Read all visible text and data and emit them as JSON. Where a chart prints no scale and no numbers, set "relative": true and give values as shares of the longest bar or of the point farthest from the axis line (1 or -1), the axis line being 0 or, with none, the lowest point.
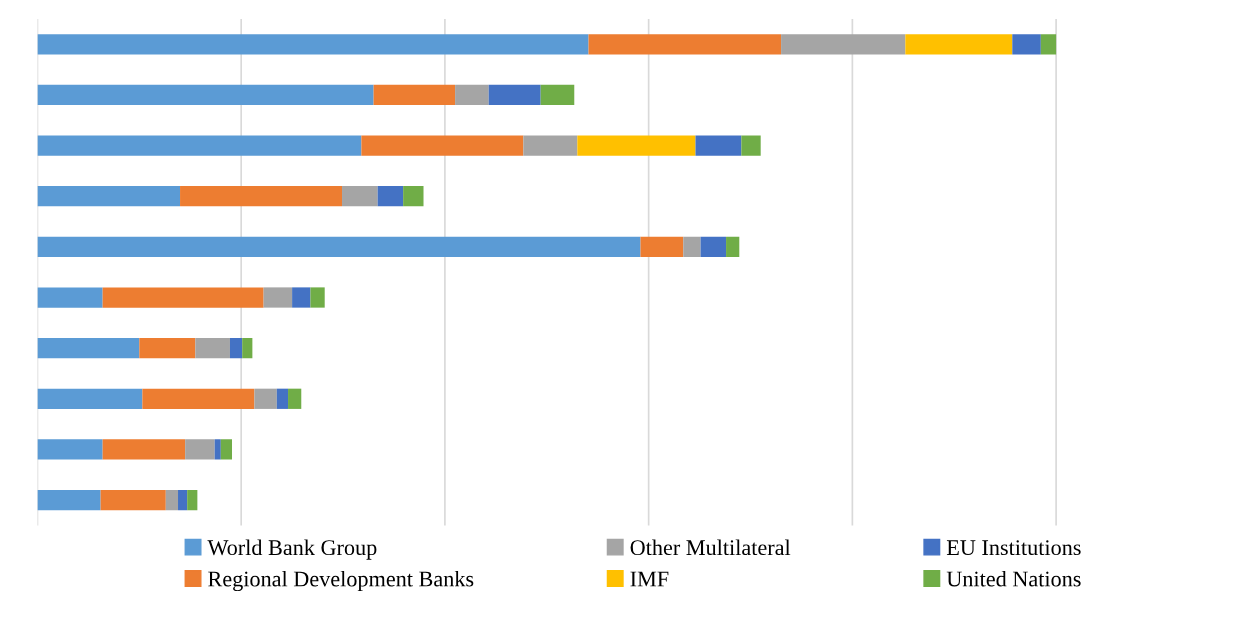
{
  "chart_data": {
    "type": "bar",
    "orientation": "horizontal",
    "stacked": true,
    "relative": true,
    "grid": "x",
    "legend": "bottom",
    "categories": [
      null,
      null,
      null,
      null,
      null,
      null,
      null,
      null,
      null,
      null
    ],
    "series": [
      {
        "name": "World Bank Group",
        "color": "#5b9bd5",
        "values": [
          0.541,
          0.33,
          0.318,
          0.14,
          0.592,
          0.064,
          0.1,
          0.103,
          0.064,
          0.062
        ]
      },
      {
        "name": "Regional Development Banks",
        "color": "#ed7d31",
        "values": [
          0.189,
          0.08,
          0.159,
          0.159,
          0.042,
          0.158,
          0.055,
          0.11,
          0.081,
          0.064
        ]
      },
      {
        "name": "Other Multilateral",
        "color": "#a5a5a5",
        "values": [
          0.122,
          0.033,
          0.053,
          0.035,
          0.017,
          0.028,
          0.034,
          0.022,
          0.029,
          0.012
        ]
      },
      {
        "name": "IMF",
        "color": "#ffc000",
        "values": [
          0.105,
          null,
          0.116,
          null,
          null,
          null,
          null,
          null,
          null,
          null
        ]
      },
      {
        "name": "EU Institutions",
        "color": "#4472c4",
        "values": [
          0.028,
          0.051,
          0.045,
          0.025,
          0.025,
          0.018,
          0.012,
          0.011,
          0.006,
          0.009
        ]
      },
      {
        "name": "United Nations",
        "color": "#70ad47",
        "values": [
          0.015,
          0.033,
          0.019,
          0.02,
          0.013,
          0.014,
          0.01,
          0.013,
          0.011,
          0.01
        ]
      }
    ]
  }
}
